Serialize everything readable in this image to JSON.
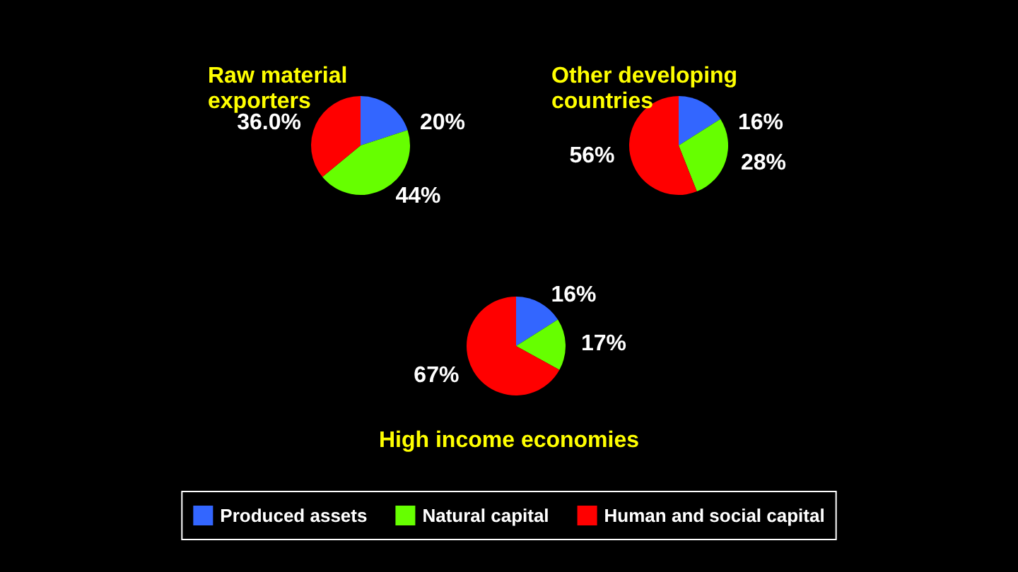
{
  "chart_data": [
    {
      "type": "pie",
      "title": "Raw material\nexporters",
      "categories": [
        null,
        null,
        null
      ],
      "values": [
        20,
        44,
        36
      ],
      "colors": [
        "#3366ff",
        "#66ff00",
        "#ff0000"
      ],
      "value_labels": [
        "20%",
        "44%",
        "36.0%"
      ]
    },
    {
      "type": "pie",
      "title": "Other developing\ncountries",
      "categories": [
        null,
        null,
        null
      ],
      "values": [
        16,
        28,
        56
      ],
      "colors": [
        "#3366ff",
        "#66ff00",
        "#ff0000"
      ],
      "value_labels": [
        "16%",
        "28%",
        "56%"
      ]
    },
    {
      "type": "pie",
      "title": "High income economies",
      "categories": [
        "Produced assets",
        "Natural capital",
        "Human and social capital"
      ],
      "values": [
        16,
        17,
        67
      ],
      "colors": [
        "#3366ff",
        "#66ff00",
        "#ff0000"
      ],
      "value_labels": [
        "16%",
        "17%",
        "67%"
      ],
      "legend": "bottom"
    }
  ]
}
